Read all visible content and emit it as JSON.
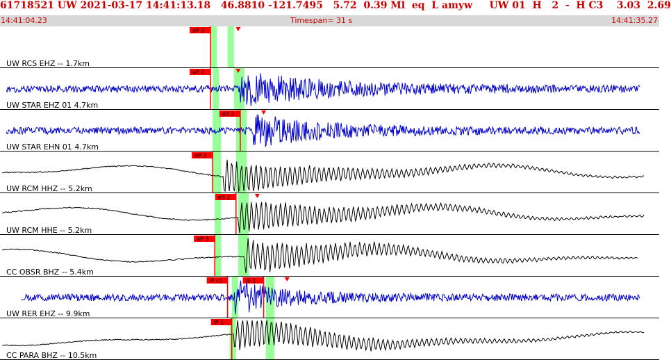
{
  "header": {
    "event_line": "61718521 UW 2021-03-17 14:41:13.18   46.8810 -121.7495   5.72  0.39 Ml  eq  L amyw     UW 01  H   2  -  H C3    3.03  2.69"
  },
  "time_bar": {
    "start": "14:41:04.23",
    "span_label": "Timespan=",
    "span_value": "31 s",
    "end": "14:41:35.27"
  },
  "colors": {
    "header_text": "#cc0000",
    "time_bar_bg": "#d8d8d8",
    "pick_fill": "#ff0000",
    "window_fill": "#99ff99",
    "trace_blue": "#0000cc",
    "trace_black": "#000000"
  },
  "chart_data": {
    "type": "line",
    "title": "",
    "x_range_s": [
      0,
      31
    ],
    "x_start_time": "14:41:04.23",
    "traces": [
      {
        "label": "UW RCS EHZ -- 1.7km",
        "color": "#0000cc",
        "style": "noise",
        "signal_start_s": 30.0,
        "signal_end_s": 30.0,
        "onset_s": 10.0,
        "decay_s": 3.0,
        "picks": [
          {
            "label": "eP 2",
            "t": 9.9
          }
        ],
        "markers_s": [
          11.2
        ],
        "windows_s": [
          [
            9.9,
            10.2
          ],
          [
            10.7,
            11.0
          ]
        ]
      },
      {
        "label": "UW STAR EHZ 01 4.7km",
        "color": "#0000cc",
        "style": "noise",
        "signal_start_s": 0.3,
        "signal_end_s": 30.1,
        "onset_s": 11.3,
        "decay_s": 4.5,
        "picks": [
          {
            "label": "eP 2",
            "t": 9.9
          }
        ],
        "markers_s": [
          11.2
        ],
        "windows_s": [
          [
            10.0,
            10.3
          ],
          [
            11.0,
            11.5
          ]
        ]
      },
      {
        "label": "UW STAR EHN 01 4.7km",
        "color": "#0000cc",
        "style": "noise",
        "signal_start_s": 0.3,
        "signal_end_s": 30.1,
        "onset_s": 11.9,
        "decay_s": 3.5,
        "picks": [
          {
            "label": "eS 2",
            "t": 11.3
          }
        ],
        "markers_s": [
          12.4
        ],
        "windows_s": [
          [
            10.0,
            10.4
          ],
          [
            11.1,
            11.6
          ]
        ]
      },
      {
        "label": "UW RCM HHZ -- 5.2km",
        "color": "#000000",
        "style": "long",
        "signal_start_s": 0.1,
        "signal_end_s": 30.3,
        "onset_s": 10.5,
        "decay_s": 6.0,
        "picks": [
          {
            "label": "eP 2",
            "t": 10.0
          }
        ],
        "markers_s": [],
        "windows_s": [
          [
            10.0,
            10.4
          ],
          [
            11.1,
            11.6
          ]
        ]
      },
      {
        "label": "UW RCM HHE -- 5.2km",
        "color": "#000000",
        "style": "long",
        "signal_start_s": 0.1,
        "signal_end_s": 30.3,
        "onset_s": 11.2,
        "decay_s": 6.0,
        "picks": [
          {
            "label": "eS 2",
            "t": 11.1
          }
        ],
        "markers_s": [
          12.1
        ],
        "windows_s": [
          [
            10.1,
            10.4
          ],
          [
            11.2,
            11.7
          ]
        ]
      },
      {
        "label": "CC OBSR BHZ -- 5.4km",
        "color": "#000000",
        "style": "long",
        "signal_start_s": 0.1,
        "signal_end_s": 30.0,
        "onset_s": 11.5,
        "decay_s": 6.0,
        "picks": [
          {
            "label": "eP 3",
            "t": 10.1
          }
        ],
        "markers_s": [],
        "windows_s": [
          [
            10.1,
            10.4
          ],
          [
            11.2,
            11.7
          ]
        ]
      },
      {
        "label": "UW RER EHZ -- 9.9km",
        "color": "#0000cc",
        "style": "noise",
        "signal_start_s": 1.0,
        "signal_end_s": 30.1,
        "onset_s": 11.0,
        "decay_s": 2.5,
        "picks": [
          {
            "label": "iP c1",
            "t": 10.7
          },
          {
            "label": "iS 1",
            "t": 12.4
          }
        ],
        "markers_s": [
          13.5
        ],
        "windows_s": [
          [
            10.9,
            11.2
          ],
          [
            12.5,
            12.9
          ]
        ]
      },
      {
        "label": "CC PARA BHZ -- 10.5km",
        "color": "#000000",
        "style": "long",
        "signal_start_s": 0.1,
        "signal_end_s": 30.3,
        "onset_s": 11.0,
        "decay_s": 6.0,
        "picks": [
          {
            "label": "iP 1",
            "t": 10.9
          }
        ],
        "markers_s": [],
        "windows_s": [
          [
            10.8,
            11.1
          ],
          [
            12.5,
            12.9
          ]
        ]
      }
    ]
  }
}
